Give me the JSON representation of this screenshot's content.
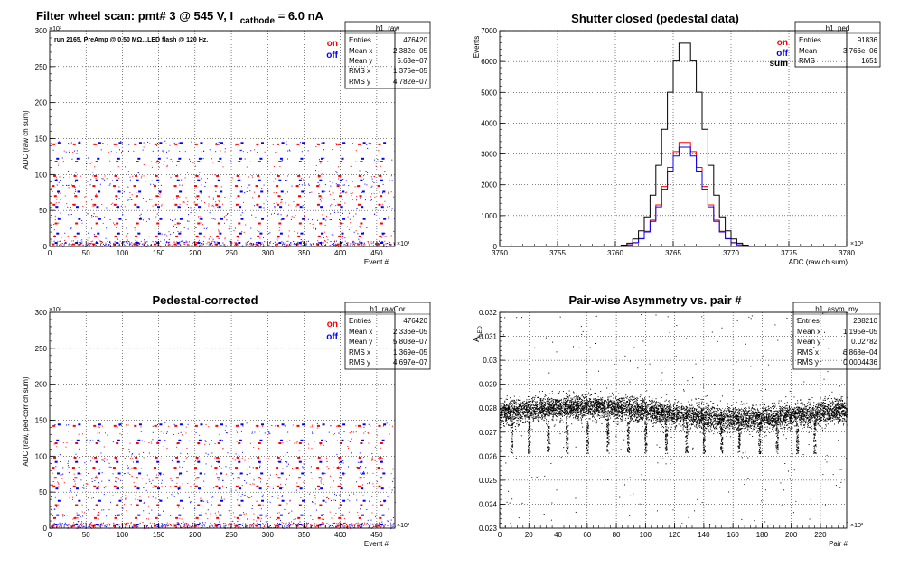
{
  "panels": {
    "tl": {
      "title": "Filter wheel scan: pmt#   3 @   545 V, I",
      "title_sub": "cathode",
      "title_tail": " = 6.0 nA",
      "run_note": "run 2165, PreAmp @ 0.50 MΩ...LED flash @  120 Hz.",
      "ylabel": "ADC (raw ch sum)",
      "xlabel": "Event #",
      "y_exp": "×10³",
      "x_exp": "×10³",
      "legend": [
        {
          "label": "on",
          "color": "#ff0000"
        },
        {
          "label": "off",
          "color": "#0000ff"
        }
      ],
      "stats": {
        "name": "h1_raw",
        "rows": [
          [
            "Entries",
            "476420"
          ],
          [
            "Mean x",
            "2.382e+05"
          ],
          [
            "Mean y",
            "5.63e+07"
          ],
          [
            "RMS x",
            "1.375e+05"
          ],
          [
            "RMS y",
            "4.782e+07"
          ]
        ]
      }
    },
    "tr": {
      "title": "Shutter closed (pedestal data)",
      "ylabel": "Events",
      "xlabel": "ADC (raw ch sum)",
      "x_exp": "×10³",
      "legend": [
        {
          "label": "on",
          "color": "#ff0000"
        },
        {
          "label": "off",
          "color": "#0000ff"
        },
        {
          "label": "sum",
          "color": "#000000"
        }
      ],
      "stats": {
        "name": "h1_ped",
        "rows": [
          [
            "Entries",
            "91836"
          ],
          [
            "Mean",
            "3.766e+06"
          ],
          [
            "RMS",
            "1651"
          ]
        ]
      }
    },
    "bl": {
      "title": "Pedestal-corrected",
      "ylabel": "ADC (raw, ped-corr ch sum)",
      "xlabel": "Event #",
      "y_exp": "×10³",
      "x_exp": "×10³",
      "legend": [
        {
          "label": "on",
          "color": "#ff0000"
        },
        {
          "label": "off",
          "color": "#0000ff"
        }
      ],
      "stats": {
        "name": "h1_rawCor",
        "rows": [
          [
            "Entries",
            "476420"
          ],
          [
            "Mean x",
            "2.336e+05"
          ],
          [
            "Mean y",
            "5.808e+07"
          ],
          [
            "RMS x",
            "1.369e+05"
          ],
          [
            "RMS y",
            "4.697e+07"
          ]
        ]
      }
    },
    "br": {
      "title": "Pair-wise Asymmetry vs. pair #",
      "ylabel": "A",
      "ylabel_sub": "LED",
      "xlabel": "Pair #",
      "x_exp": "×10³",
      "stats": {
        "name": "h1_asym_my",
        "rows": [
          [
            "Entries",
            "238210"
          ],
          [
            "Mean x",
            "1.195e+05"
          ],
          [
            "Mean y",
            "0.02782"
          ],
          [
            "RMS x",
            "6.868e+04"
          ],
          [
            "RMS y",
            "0.0004436"
          ]
        ]
      }
    }
  },
  "chart_data": [
    {
      "type": "scatter",
      "id": "tl",
      "xlim": [
        0,
        475
      ],
      "ylim": [
        0,
        300
      ],
      "xticks": [
        0,
        50,
        100,
        150,
        200,
        250,
        300,
        350,
        400,
        450
      ],
      "yticks": [
        0,
        50,
        100,
        150,
        200,
        250,
        300
      ],
      "grid": true,
      "on_levels": [
        3,
        8,
        14,
        22,
        32,
        42,
        58,
        62,
        70,
        75,
        84,
        96,
        98,
        112,
        118,
        132,
        142
      ],
      "off_levels": [
        5,
        10,
        18,
        26,
        38,
        46,
        55,
        66,
        76,
        86,
        92,
        104,
        122,
        134,
        144
      ],
      "cycle_events": 28
    },
    {
      "type": "line",
      "id": "tr",
      "xlim": [
        3750,
        3780
      ],
      "ylim": [
        0,
        7000
      ],
      "xticks": [
        3750,
        3755,
        3760,
        3765,
        3770,
        3775,
        3780
      ],
      "yticks": [
        0,
        1000,
        2000,
        3000,
        4000,
        5000,
        6000,
        7000
      ],
      "grid": true,
      "mean": 3766.0,
      "sigma": 1.65,
      "series": [
        {
          "name": "on",
          "peak": 3380,
          "color": "#ff0000"
        },
        {
          "name": "off",
          "peak": 3290,
          "color": "#0000ff"
        },
        {
          "name": "sum",
          "peak": 6670,
          "color": "#000000"
        }
      ]
    },
    {
      "type": "scatter",
      "id": "bl",
      "xlim": [
        0,
        475
      ],
      "ylim": [
        0,
        300
      ],
      "xticks": [
        0,
        50,
        100,
        150,
        200,
        250,
        300,
        350,
        400,
        450
      ],
      "yticks": [
        0,
        50,
        100,
        150,
        200,
        250,
        300
      ],
      "grid": true,
      "on_levels": [
        3,
        8,
        14,
        22,
        32,
        42,
        58,
        62,
        70,
        75,
        84,
        96,
        98,
        112,
        118,
        132,
        142
      ],
      "off_levels": [
        5,
        10,
        18,
        26,
        38,
        46,
        55,
        66,
        76,
        86,
        92,
        104,
        122,
        134,
        144
      ],
      "cycle_events": 28
    },
    {
      "type": "scatter",
      "id": "br",
      "xlim": [
        0,
        238
      ],
      "ylim": [
        0.023,
        0.032
      ],
      "xticks": [
        0,
        20,
        40,
        60,
        80,
        100,
        120,
        140,
        160,
        180,
        200,
        220
      ],
      "yticks": [
        0.023,
        0.024,
        0.025,
        0.026,
        0.027,
        0.028,
        0.029,
        0.03,
        0.031,
        0.032
      ],
      "ytick_labels": [
        "0.023",
        "0.024",
        "0.025",
        "0.026",
        "0.027",
        "0.028",
        "0.029",
        "0.03",
        "0.031",
        "0.032"
      ],
      "grid": true,
      "band_center": 0.02782,
      "band_sigma": 0.00045,
      "dip_positions": [
        8,
        20,
        33,
        46,
        60,
        74,
        88,
        100,
        114,
        128,
        140,
        152,
        164,
        178,
        190,
        204,
        216
      ]
    }
  ]
}
